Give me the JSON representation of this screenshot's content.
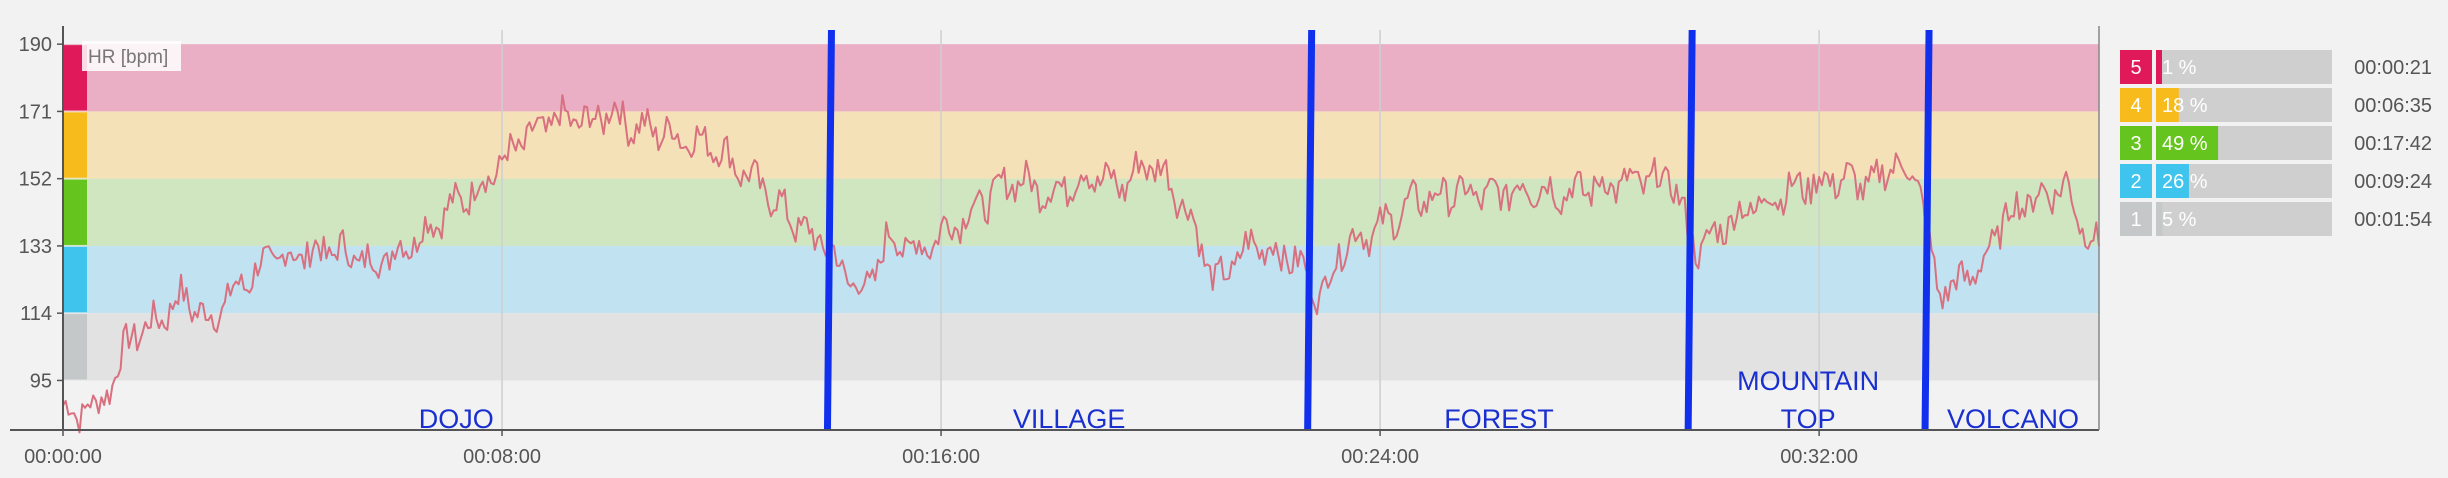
{
  "chart_data": {
    "type": "line",
    "title": "",
    "series_label": "HR [bpm]",
    "y_ticks": [
      95,
      114,
      133,
      152,
      171,
      190
    ],
    "ylim": [
      81,
      194
    ],
    "x_ticks": [
      "00:00:00",
      "00:08:00",
      "00:16:00",
      "00:24:00",
      "00:32:00"
    ],
    "x_tick_seconds": [
      0,
      480,
      960,
      1440,
      1920
    ],
    "xlim_seconds": [
      0,
      2226
    ],
    "grid": true,
    "line_color": "#d9707f",
    "zones": [
      {
        "zone": 5,
        "from": 171,
        "to": 190,
        "color": "#eaaec5",
        "marker_color": "#e0195a"
      },
      {
        "zone": 4,
        "from": 152,
        "to": 171,
        "color": "#f5e1b8",
        "marker_color": "#f7bb1c"
      },
      {
        "zone": 3,
        "from": 133,
        "to": 152,
        "color": "#cfe6c0",
        "marker_color": "#66c41f"
      },
      {
        "zone": 2,
        "from": 114,
        "to": 133,
        "color": "#c0e2f1",
        "marker_color": "#3fc4ee"
      },
      {
        "zone": 1,
        "from": 95,
        "to": 114,
        "color": "#e2e2e2",
        "marker_color": "#c4c8c8"
      }
    ],
    "dividers_seconds": [
      838,
      1363,
      1779,
      2038
    ],
    "scenes": [
      {
        "label": "DOJO",
        "x": 430
      },
      {
        "label": "VILLAGE",
        "x": 1100
      },
      {
        "label": "FOREST",
        "x": 1570
      },
      {
        "label": "MOUNTAIN\nTOP",
        "x": 1908
      },
      {
        "label": "VOLCANO",
        "x": 2132
      }
    ],
    "series": [
      {
        "keypoints_seconds": [
          0,
          15,
          28,
          35,
          55,
          75,
          100,
          130,
          160,
          190,
          225,
          265,
          300,
          340,
          380,
          420,
          460,
          500,
          540,
          580,
          600,
          620,
          660,
          700,
          705,
          740,
          770,
          800,
          820,
          838,
          850,
          880,
          900,
          940,
          960,
          1000,
          1040,
          1080,
          1120,
          1160,
          1180,
          1200,
          1230,
          1260,
          1300,
          1340,
          1363,
          1375,
          1400,
          1440,
          1480,
          1520,
          1560,
          1600,
          1640,
          1680,
          1720,
          1760,
          1779,
          1790,
          1820,
          1860,
          1900,
          1940,
          1980,
          2000,
          2030,
          2038,
          2050,
          2070,
          2100,
          2120,
          2140,
          2160,
          2190,
          2210,
          2226
        ],
        "keypoints_bpm": [
          88,
          84,
          91,
          85,
          96,
          108,
          111,
          119,
          112,
          121,
          129,
          131,
          132,
          128,
          134,
          143,
          151,
          162,
          169,
          168,
          172,
          167,
          165,
          162,
          163,
          155,
          148,
          140,
          135,
          133,
          126,
          120,
          135,
          132,
          137,
          144,
          152,
          148,
          153,
          150,
          156,
          155,
          143,
          122,
          134,
          130,
          125,
          118,
          134,
          138,
          146,
          148,
          147,
          150,
          148,
          150,
          151,
          152,
          135,
          132,
          140,
          146,
          150,
          152,
          150,
          157,
          151,
          136,
          120,
          122,
          128,
          140,
          145,
          147,
          150,
          138,
          132
        ]
      }
    ]
  },
  "legend": {
    "rows": [
      {
        "zone": "5",
        "percent": 1,
        "percent_label": "1 %",
        "time": "00:00:21",
        "color": "#e0195a"
      },
      {
        "zone": "4",
        "percent": 18,
        "percent_label": "18 %",
        "time": "00:06:35",
        "color": "#f7bb1c"
      },
      {
        "zone": "3",
        "percent": 49,
        "percent_label": "49 %",
        "time": "00:17:42",
        "color": "#66c41f"
      },
      {
        "zone": "2",
        "percent": 26,
        "percent_label": "26 %",
        "time": "00:09:24",
        "color": "#3fc4ee"
      },
      {
        "zone": "1",
        "percent": 5,
        "percent_label": "5 %",
        "time": "00:01:54",
        "color": "#c4c8c8"
      }
    ]
  }
}
